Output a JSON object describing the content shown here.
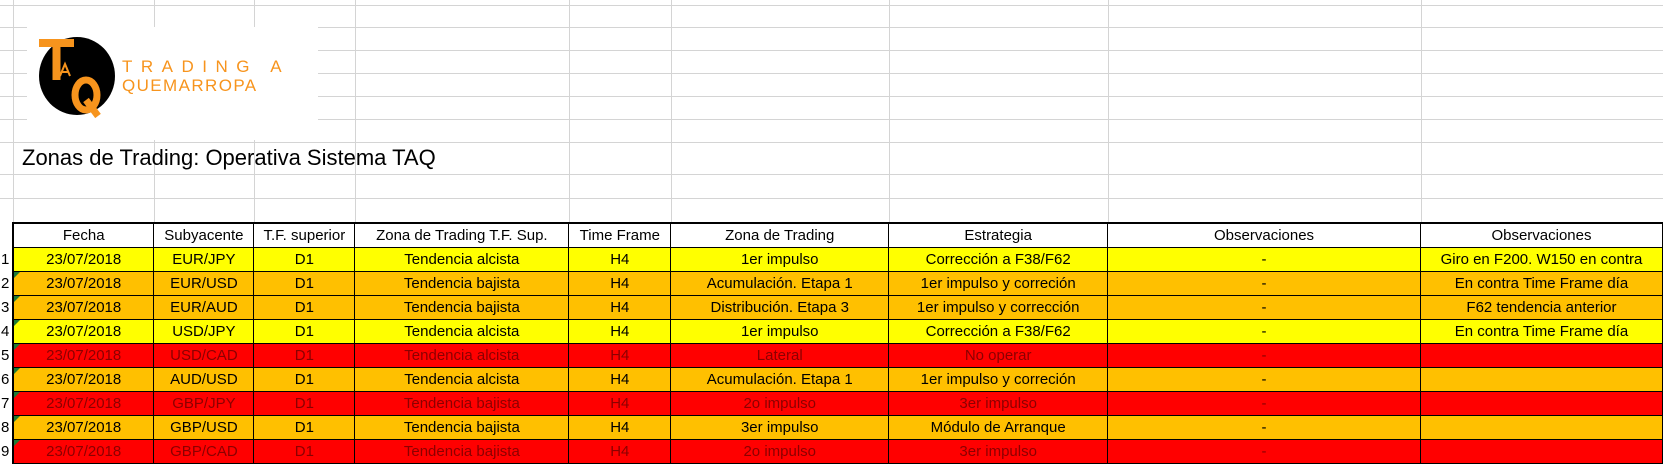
{
  "logo": {
    "letters": "TAQ",
    "line1": "TRADING A",
    "line2": "QUEMARROPA",
    "brand_color": "#f7941d"
  },
  "sheet_title": "Zonas de Trading: Operativa Sistema TAQ",
  "colors": {
    "yellow": "#ffff00",
    "orange": "#ffc000",
    "red": "#ff0000"
  },
  "table": {
    "headers": [
      "Fecha",
      "Subyacente",
      "T.F. superior",
      "Zona de Trading T.F. Sup.",
      "Time Frame",
      "Zona de Trading",
      "Estrategia",
      "Observaciones",
      "Observaciones"
    ],
    "rows": [
      {
        "num": "1",
        "color": "yellow",
        "cells": [
          "23/07/2018",
          "EUR/JPY",
          "D1",
          "Tendencia alcista",
          "H4",
          "1er impulso",
          "Corrección a F38/F62",
          "-",
          "Giro en F200. W150 en contra"
        ]
      },
      {
        "num": "2",
        "color": "orange",
        "cells": [
          "23/07/2018",
          "EUR/USD",
          "D1",
          "Tendencia bajista",
          "H4",
          "Acumulación. Etapa 1",
          "1er impulso y correción",
          "-",
          "En contra  Time Frame día"
        ]
      },
      {
        "num": "3",
        "color": "orange",
        "cells": [
          "23/07/2018",
          "EUR/AUD",
          "D1",
          "Tendencia bajista",
          "H4",
          "Distribución. Etapa 3",
          "1er impulso y corrección",
          "-",
          "F62 tendencia anterior"
        ]
      },
      {
        "num": "4",
        "color": "yellow",
        "cells": [
          "23/07/2018",
          "USD/JPY",
          "D1",
          "Tendencia alcista",
          "H4",
          "1er impulso",
          "Corrección a F38/F62",
          "-",
          "En contra  Time Frame día"
        ]
      },
      {
        "num": "5",
        "color": "red",
        "cells": [
          "23/07/2018",
          "USD/CAD",
          "D1",
          "Tendencia alcista",
          "H4",
          "Lateral",
          "No operar",
          "-",
          ""
        ]
      },
      {
        "num": "6",
        "color": "orange",
        "cells": [
          "23/07/2018",
          "AUD/USD",
          "D1",
          "Tendencia alcista",
          "H4",
          "Acumulación. Etapa 1",
          "1er impulso y correción",
          "-",
          ""
        ]
      },
      {
        "num": "7",
        "color": "red",
        "cells": [
          "23/07/2018",
          "GBP/JPY",
          "D1",
          "Tendencia bajista",
          "H4",
          "2o impulso",
          "3er impulso",
          "-",
          ""
        ]
      },
      {
        "num": "8",
        "color": "orange",
        "cells": [
          "23/07/2018",
          "GBP/USD",
          "D1",
          "Tendencia bajista",
          "H4",
          "3er impulso",
          "Módulo de Arranque",
          "-",
          ""
        ]
      },
      {
        "num": "9",
        "color": "red",
        "cells": [
          "23/07/2018",
          "GBP/CAD",
          "D1",
          "Tendencia bajista",
          "H4",
          "2o impulso",
          "3er impulso",
          "-",
          ""
        ]
      }
    ]
  }
}
